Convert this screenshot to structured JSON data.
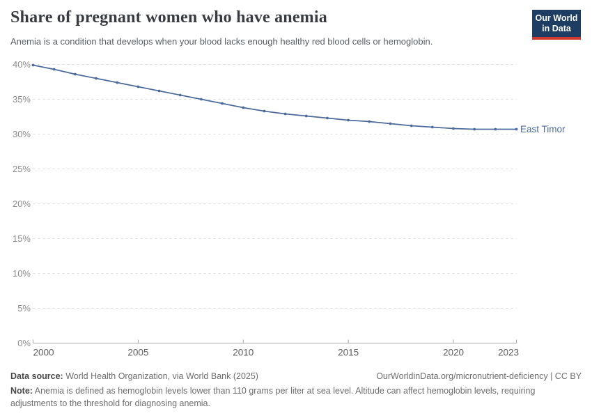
{
  "header": {
    "title": "Share of pregnant women who have anemia",
    "subtitle": "Anemia is a condition that develops when your blood lacks enough healthy red blood cells or hemoglobin.",
    "logo": {
      "line1": "Our World",
      "line2": "in Data"
    }
  },
  "chart_data": {
    "type": "line",
    "title": "Share of pregnant women who have anemia",
    "x": [
      2000,
      2001,
      2002,
      2003,
      2004,
      2005,
      2006,
      2007,
      2008,
      2009,
      2010,
      2011,
      2012,
      2013,
      2014,
      2015,
      2016,
      2017,
      2018,
      2019,
      2020,
      2021,
      2022,
      2023
    ],
    "series": [
      {
        "name": "East Timor",
        "color": "#4c6a9c",
        "values": [
          39.9,
          39.3,
          38.6,
          38.0,
          37.4,
          36.8,
          36.2,
          35.6,
          35.0,
          34.4,
          33.8,
          33.3,
          32.9,
          32.6,
          32.3,
          32.0,
          31.8,
          31.5,
          31.2,
          31.0,
          30.8,
          30.7,
          30.7,
          30.7
        ]
      }
    ],
    "xlim": [
      2000,
      2023
    ],
    "ylim": [
      0,
      40
    ],
    "xticks": [
      2000,
      2005,
      2010,
      2015,
      2020,
      2023
    ],
    "yticks": [
      0,
      5,
      10,
      15,
      20,
      25,
      30,
      35,
      40
    ],
    "ytick_suffix": "%",
    "grid": "horizontal-dashed",
    "legend_position": "end-of-line-label"
  },
  "footer": {
    "data_source_label": "Data source:",
    "data_source_text": " World Health Organization, via World Bank (2025)",
    "link": "OurWorldinData.org/micronutrient-deficiency | CC BY",
    "note_label": "Note:",
    "note_text": " Anemia is defined as hemoglobin levels lower than 110 grams per liter at sea level. Altitude can affect hemoglobin levels, requiring adjustments to the threshold for diagnosing anemia."
  },
  "colors": {
    "line": "#4c6a9c",
    "logo_bg": "#1d3d63",
    "logo_stripe": "#d13832",
    "grid": "#dcdcdc",
    "axis": "#a8a8a8",
    "ytick_label": "#8c8c8c",
    "xtick_label": "#5f5f5f"
  }
}
